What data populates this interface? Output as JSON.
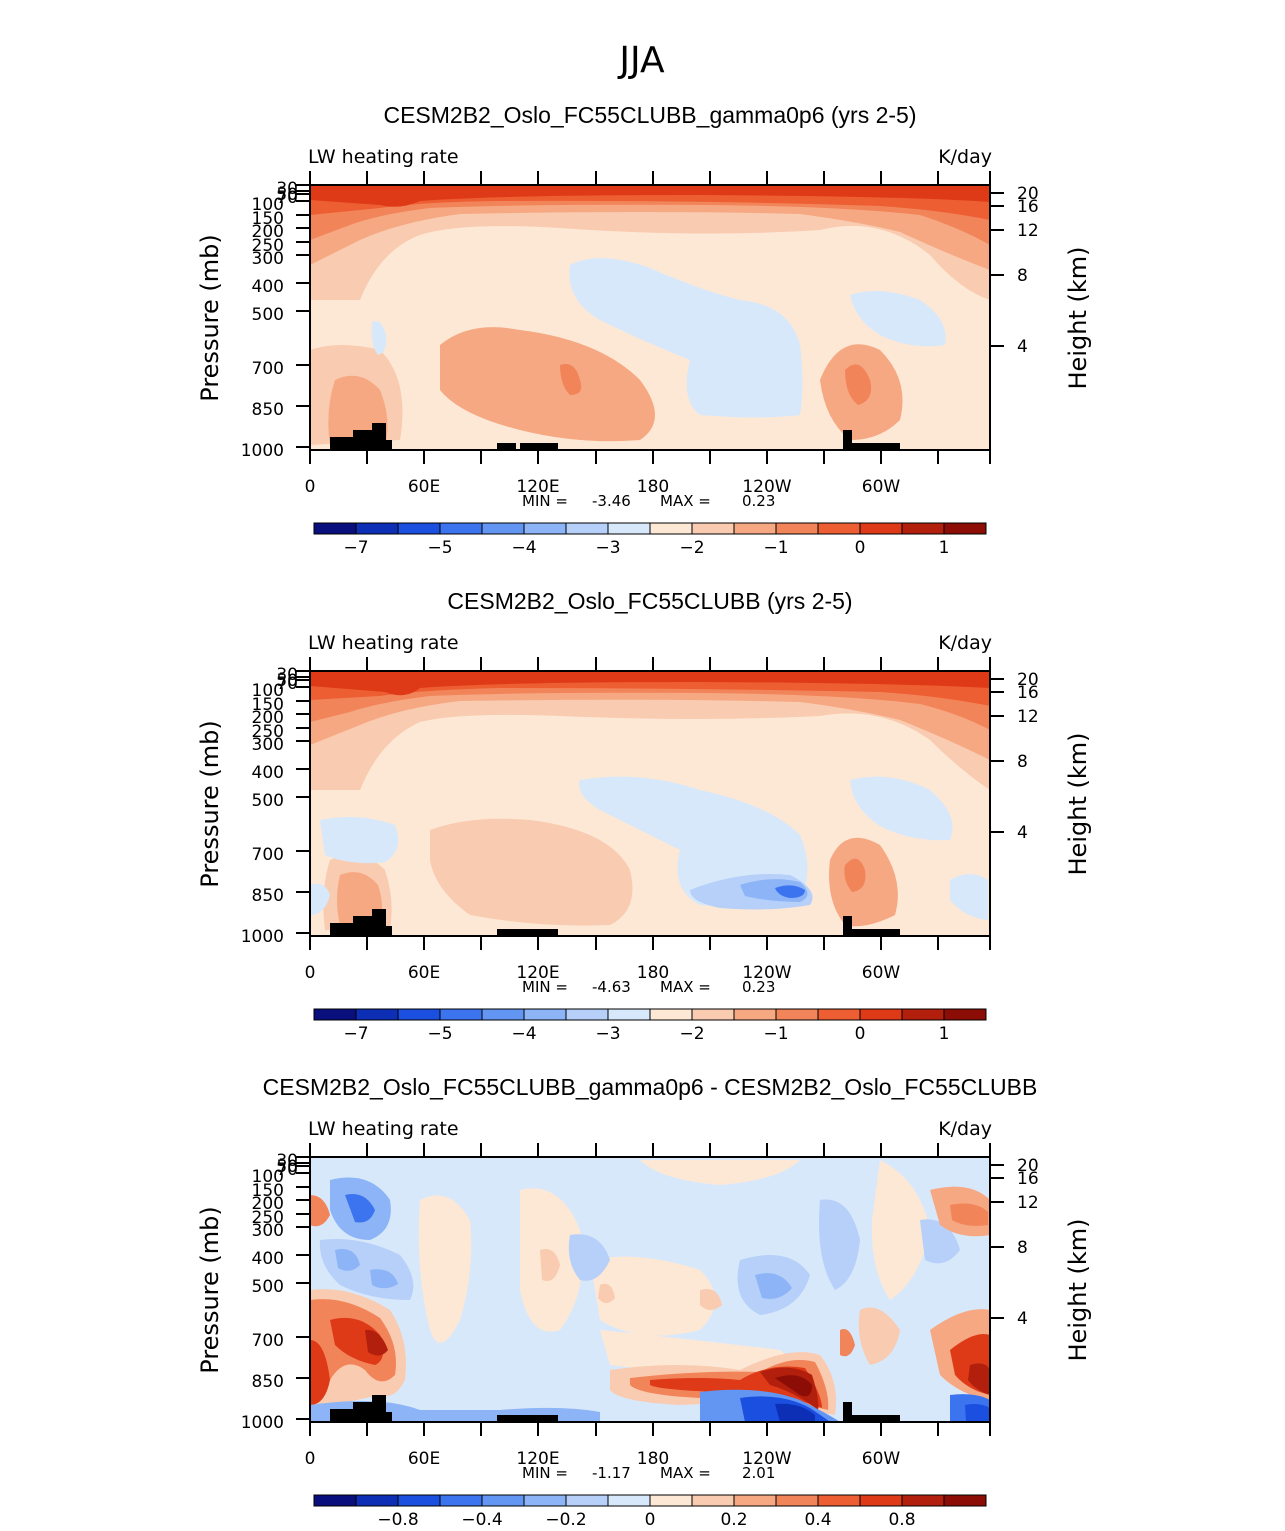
{
  "figure_title": "JJA",
  "colors": {
    "blues": [
      "#0a0f7e",
      "#0d2fb5",
      "#1a4fe0",
      "#3c74f0",
      "#6396f2",
      "#8cb4f6",
      "#b6d0f9",
      "#d8e8fb"
    ],
    "reds": [
      "#fde8d6",
      "#f9cbb0",
      "#f6a883",
      "#f2845a",
      "#ee5e33",
      "#de3a17",
      "#b21f0c",
      "#8b0d05"
    ],
    "ocean_pale": "#fdeee2",
    "land": "#000000"
  },
  "chart_data": [
    {
      "type": "contour",
      "title": "CESM2B2_Oslo_FC55CLUBB_gamma0p6 (yrs 2-5)",
      "left_label": "LW heating rate",
      "right_label": "K/day",
      "ylabel": "Pressure (mb)",
      "y2label": "Height (km)",
      "x_ticks": [
        "0",
        "60E",
        "120E",
        "180",
        "120W",
        "60W"
      ],
      "y_ticks": [
        "30",
        "50",
        "70",
        "100",
        "150",
        "200",
        "250",
        "300",
        "400",
        "500",
        "700",
        "850",
        "1000"
      ],
      "y2_ticks": [
        "20",
        "16",
        "12",
        "8",
        "4"
      ],
      "min_label": "MIN =",
      "min_value": "-3.46",
      "max_label": "MAX =",
      "max_value": "0.23",
      "colorbar_labels": [
        "−7",
        "−5",
        "−4",
        "−3",
        "−2",
        "−1",
        "0",
        "1"
      ]
    },
    {
      "type": "contour",
      "title": "CESM2B2_Oslo_FC55CLUBB (yrs 2-5)",
      "left_label": "LW heating rate",
      "right_label": "K/day",
      "ylabel": "Pressure (mb)",
      "y2label": "Height (km)",
      "x_ticks": [
        "0",
        "60E",
        "120E",
        "180",
        "120W",
        "60W"
      ],
      "y_ticks": [
        "30",
        "50",
        "70",
        "100",
        "150",
        "200",
        "250",
        "300",
        "400",
        "500",
        "700",
        "850",
        "1000"
      ],
      "y2_ticks": [
        "20",
        "16",
        "12",
        "8",
        "4"
      ],
      "min_label": "MIN =",
      "min_value": "-4.63",
      "max_label": "MAX =",
      "max_value": "0.23",
      "colorbar_labels": [
        "−7",
        "−5",
        "−4",
        "−3",
        "−2",
        "−1",
        "0",
        "1"
      ]
    },
    {
      "type": "contour",
      "title": "CESM2B2_Oslo_FC55CLUBB_gamma0p6 - CESM2B2_Oslo_FC55CLUBB",
      "left_label": "LW heating rate",
      "right_label": "K/day",
      "ylabel": "Pressure (mb)",
      "y2label": "Height (km)",
      "x_ticks": [
        "0",
        "60E",
        "120E",
        "180",
        "120W",
        "60W"
      ],
      "y_ticks": [
        "30",
        "50",
        "70",
        "100",
        "150",
        "200",
        "250",
        "300",
        "400",
        "500",
        "700",
        "850",
        "1000"
      ],
      "y2_ticks": [
        "20",
        "16",
        "12",
        "8",
        "4"
      ],
      "min_label": "MIN =",
      "min_value": "-1.17",
      "max_label": "MAX =",
      "max_value": "2.01",
      "colorbar_labels": [
        "−0.8",
        "−0.4",
        "−0.2",
        "0",
        "0.2",
        "0.4",
        "0.8"
      ]
    }
  ]
}
